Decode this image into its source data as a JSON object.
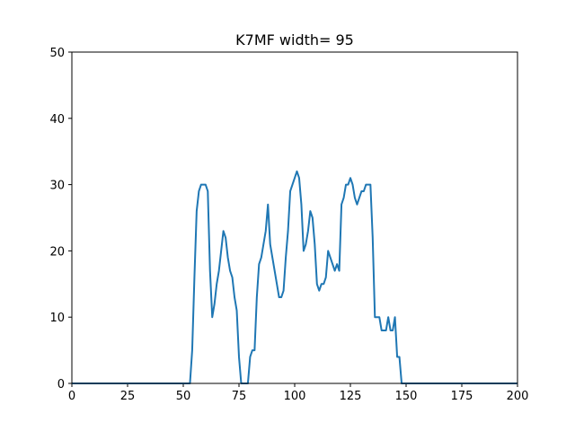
{
  "chart_data": {
    "type": "line",
    "title": "K7MF width= 95",
    "xlabel": "",
    "ylabel": "",
    "xlim": [
      0,
      200
    ],
    "ylim": [
      0,
      50
    ],
    "xticks": [
      0,
      25,
      50,
      75,
      100,
      125,
      150,
      175,
      200
    ],
    "yticks": [
      0,
      10,
      20,
      30,
      40,
      50
    ],
    "grid": false,
    "colors": {
      "line": "#1f77b4"
    },
    "series": [
      {
        "x": [
          0,
          52,
          53,
          54,
          55,
          56,
          57,
          58,
          59,
          60,
          61,
          62,
          63,
          64,
          65,
          66,
          67,
          68,
          69,
          70,
          71,
          72,
          73,
          74,
          75,
          76,
          77,
          78,
          79,
          80,
          81,
          82,
          83,
          84,
          85,
          86,
          87,
          88,
          89,
          90,
          91,
          92,
          93,
          94,
          95,
          96,
          97,
          98,
          99,
          100,
          101,
          102,
          103,
          104,
          105,
          106,
          107,
          108,
          109,
          110,
          111,
          112,
          113,
          114,
          115,
          116,
          117,
          118,
          119,
          120,
          121,
          122,
          123,
          124,
          125,
          126,
          127,
          128,
          129,
          130,
          131,
          132,
          133,
          134,
          135,
          136,
          137,
          138,
          139,
          140,
          141,
          142,
          143,
          144,
          145,
          146,
          147,
          148,
          200
        ],
        "y": [
          0,
          0,
          0,
          5,
          16,
          26,
          29,
          30,
          30,
          30,
          29,
          17,
          10,
          12,
          15,
          17,
          20,
          23,
          22,
          19,
          17,
          16,
          13,
          11,
          4,
          0,
          0,
          0,
          0,
          4,
          5,
          5,
          13,
          18,
          19,
          21,
          23,
          27,
          21,
          19,
          17,
          15,
          13,
          13,
          14,
          19,
          23,
          29,
          30,
          31,
          32,
          31,
          27,
          20,
          21,
          23,
          26,
          25,
          21,
          15,
          14,
          15,
          15,
          16,
          20,
          19,
          18,
          17,
          18,
          17,
          27,
          28,
          30,
          30,
          31,
          30,
          28,
          27,
          28,
          29,
          29,
          30,
          30,
          30,
          22,
          10,
          10,
          10,
          8,
          8,
          8,
          10,
          8,
          8,
          10,
          4,
          4,
          0,
          0
        ]
      }
    ]
  }
}
